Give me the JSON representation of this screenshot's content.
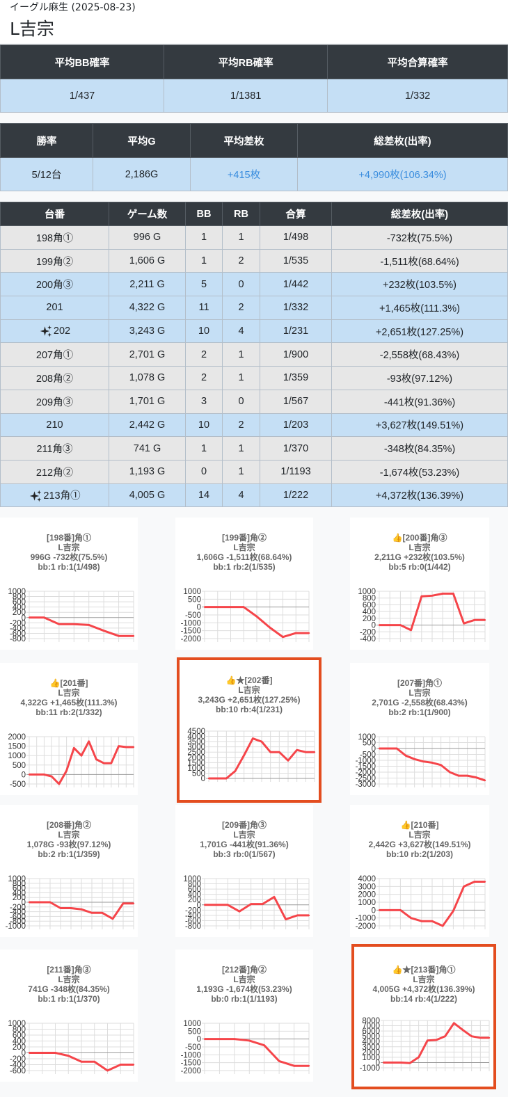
{
  "header": {
    "subtitle": "イーグル麻生 (2025-08-23)",
    "title": "L吉宗"
  },
  "summary1": {
    "headers": [
      "平均BB確率",
      "平均RB確率",
      "平均合算確率"
    ],
    "values": [
      "1/437",
      "1/1381",
      "1/332"
    ]
  },
  "summary2": {
    "headers": [
      "勝率",
      "平均G",
      "平均差枚",
      "総差枚(出率)"
    ],
    "values": [
      "5/12台",
      "2,186G",
      "+415枚",
      "+4,990枚(106.34%)"
    ]
  },
  "machines": {
    "headers": [
      "台番",
      "ゲーム数",
      "BB",
      "RB",
      "合算",
      "総差枚(出率)"
    ],
    "rows": [
      {
        "num": "198角①",
        "games": "996 G",
        "bb": "1",
        "rb": "1",
        "total": "1/498",
        "diff": "-732枚(75.5%)",
        "win": false,
        "star": false
      },
      {
        "num": "199角②",
        "games": "1,606 G",
        "bb": "1",
        "rb": "2",
        "total": "1/535",
        "diff": "-1,511枚(68.64%)",
        "win": false,
        "star": false
      },
      {
        "num": "200角③",
        "games": "2,211 G",
        "bb": "5",
        "rb": "0",
        "total": "1/442",
        "diff": "+232枚(103.5%)",
        "win": true,
        "star": false
      },
      {
        "num": "201",
        "games": "4,322 G",
        "bb": "11",
        "rb": "2",
        "total": "1/332",
        "diff": "+1,465枚(111.3%)",
        "win": true,
        "star": false
      },
      {
        "num": "202",
        "games": "3,243 G",
        "bb": "10",
        "rb": "4",
        "total": "1/231",
        "diff": "+2,651枚(127.25%)",
        "win": true,
        "star": true
      },
      {
        "num": "207角①",
        "games": "2,701 G",
        "bb": "2",
        "rb": "1",
        "total": "1/900",
        "diff": "-2,558枚(68.43%)",
        "win": false,
        "star": false
      },
      {
        "num": "208角②",
        "games": "1,078 G",
        "bb": "2",
        "rb": "1",
        "total": "1/359",
        "diff": "-93枚(97.12%)",
        "win": false,
        "star": false
      },
      {
        "num": "209角③",
        "games": "1,701 G",
        "bb": "3",
        "rb": "0",
        "total": "1/567",
        "diff": "-441枚(91.36%)",
        "win": false,
        "star": false
      },
      {
        "num": "210",
        "games": "2,442 G",
        "bb": "10",
        "rb": "2",
        "total": "1/203",
        "diff": "+3,627枚(149.51%)",
        "win": true,
        "star": false
      },
      {
        "num": "211角③",
        "games": "741 G",
        "bb": "1",
        "rb": "1",
        "total": "1/370",
        "diff": "-348枚(84.35%)",
        "win": false,
        "star": false
      },
      {
        "num": "212角②",
        "games": "1,193 G",
        "bb": "0",
        "rb": "1",
        "total": "1/1193",
        "diff": "-1,674枚(53.23%)",
        "win": false,
        "star": false
      },
      {
        "num": "213角①",
        "games": "4,005 G",
        "bb": "14",
        "rb": "4",
        "total": "1/222",
        "diff": "+4,372枚(136.39%)",
        "win": true,
        "star": true
      }
    ]
  },
  "colors": {
    "line": "#f5454a",
    "grid": "#dddddd",
    "highlight": "#e34d1f",
    "win_row": "#c5dff5",
    "lose_row": "#e7e7e7",
    "dark_header": "#343a40"
  },
  "charts": [
    {
      "lines": [
        "[198番]角①",
        "L吉宗",
        "996G -732枚(75.5%)",
        "bb:1 rb:1(1/498)"
      ],
      "highlight": false,
      "chart_data": {
        "type": "line",
        "yticks": [
          1000,
          800,
          600,
          400,
          200,
          0,
          -200,
          -400,
          -600,
          -800
        ],
        "ylim": [
          -800,
          1000
        ],
        "values": [
          0,
          0,
          -250,
          -250,
          -280,
          -500,
          -700,
          -700
        ]
      }
    },
    {
      "lines": [
        "[199番]角②",
        "L吉宗",
        "1,606G -1,511枚(68.64%)",
        "bb:1 rb:2(1/535)"
      ],
      "highlight": false,
      "chart_data": {
        "type": "line",
        "yticks": [
          1000,
          500,
          0,
          -500,
          -1000,
          -1500,
          -2000
        ],
        "ylim": [
          -2000,
          1000
        ],
        "values": [
          0,
          0,
          0,
          0,
          -600,
          -1300,
          -1900,
          -1650,
          -1650
        ]
      }
    },
    {
      "lines": [
        "👍[200番]角③",
        "L吉宗",
        "2,211G +232枚(103.5%)",
        "bb:5 rb:0(1/442)"
      ],
      "highlight": false,
      "chart_data": {
        "type": "line",
        "yticks": [
          1000,
          800,
          600,
          400,
          200,
          0,
          -200,
          -400
        ],
        "ylim": [
          -400,
          1000
        ],
        "values": [
          0,
          0,
          0,
          -150,
          850,
          870,
          930,
          930,
          50,
          150,
          150
        ]
      }
    },
    {
      "lines": [
        "👍[201番]",
        "L吉宗",
        "4,322G +1,465枚(111.3%)",
        "bb:11 rb:2(1/332)"
      ],
      "highlight": false,
      "chart_data": {
        "type": "line",
        "yticks": [
          2000,
          1500,
          1000,
          500,
          0,
          -500
        ],
        "ylim": [
          -500,
          2000
        ],
        "values": [
          0,
          0,
          0,
          -100,
          -500,
          200,
          1400,
          1000,
          1750,
          800,
          600,
          600,
          1500,
          1450,
          1450
        ]
      }
    },
    {
      "lines": [
        "👍★[202番]",
        "L吉宗",
        "3,243G +2,651枚(127.25%)",
        "bb:10 rb:4(1/231)"
      ],
      "highlight": true,
      "chart_data": {
        "type": "line",
        "yticks": [
          4500,
          4000,
          3500,
          3000,
          2500,
          2000,
          1500,
          1000,
          500,
          0
        ],
        "ylim": [
          0,
          4500
        ],
        "values": [
          0,
          0,
          0,
          700,
          2200,
          3800,
          3500,
          2500,
          2500,
          1700,
          2700,
          2500,
          2500
        ]
      }
    },
    {
      "lines": [
        "[207番]角①",
        "L吉宗",
        "2,701G -2,558枚(68.43%)",
        "bb:2 rb:1(1/900)"
      ],
      "highlight": false,
      "chart_data": {
        "type": "line",
        "yticks": [
          1000,
          500,
          0,
          -500,
          -1000,
          -1500,
          -2000,
          -2500,
          -3000
        ],
        "ylim": [
          -3000,
          1000
        ],
        "values": [
          0,
          0,
          0,
          -600,
          -900,
          -1100,
          -1200,
          -1400,
          -2000,
          -2300,
          -2300,
          -2450,
          -2700
        ]
      }
    },
    {
      "lines": [
        "[208番]角②",
        "L吉宗",
        "1,078G -93枚(97.12%)",
        "bb:2 rb:1(1/359)"
      ],
      "highlight": false,
      "chart_data": {
        "type": "line",
        "yticks": [
          1000,
          800,
          600,
          400,
          200,
          0,
          -200,
          -400,
          -600,
          -800,
          -1000
        ],
        "ylim": [
          -1000,
          1000
        ],
        "values": [
          0,
          0,
          0,
          -250,
          -250,
          -300,
          -450,
          -450,
          -700,
          -50,
          -50
        ]
      }
    },
    {
      "lines": [
        "[209番]角③",
        "L吉宗",
        "1,701G -441枚(91.36%)",
        "bb:3 rb:0(1/567)"
      ],
      "highlight": false,
      "chart_data": {
        "type": "line",
        "yticks": [
          1000,
          800,
          600,
          400,
          200,
          0,
          -200,
          -400,
          -600,
          -800
        ],
        "ylim": [
          -800,
          1000
        ],
        "values": [
          0,
          0,
          0,
          -250,
          30,
          30,
          300,
          -550,
          -400,
          -400
        ]
      }
    },
    {
      "lines": [
        "👍[210番]",
        "L吉宗",
        "2,442G +3,627枚(149.51%)",
        "bb:10 rb:2(1/203)"
      ],
      "highlight": false,
      "chart_data": {
        "type": "line",
        "yticks": [
          4000,
          3000,
          2000,
          1000,
          0,
          -1000,
          -2000
        ],
        "ylim": [
          -2000,
          4000
        ],
        "values": [
          0,
          0,
          0,
          -1000,
          -1400,
          -1400,
          -2000,
          -100,
          3000,
          3600,
          3600
        ]
      }
    },
    {
      "lines": [
        "[211番]角③",
        "L吉宗",
        "741G -348枚(84.35%)",
        "bb:1 rb:1(1/370)"
      ],
      "highlight": false,
      "chart_data": {
        "type": "line",
        "yticks": [
          1000,
          800,
          600,
          400,
          200,
          0,
          -200,
          -400,
          -600
        ],
        "ylim": [
          -600,
          1000
        ],
        "values": [
          0,
          0,
          0,
          -100,
          -300,
          -300,
          -600,
          -400,
          -400
        ]
      }
    },
    {
      "lines": [
        "[212番]角②",
        "L吉宗",
        "1,193G -1,674枚(53.23%)",
        "bb:0 rb:1(1/1193)"
      ],
      "highlight": false,
      "chart_data": {
        "type": "line",
        "yticks": [
          1000,
          500,
          0,
          -500,
          -1000,
          -1500,
          -2000
        ],
        "ylim": [
          -2000,
          1000
        ],
        "values": [
          0,
          0,
          0,
          -100,
          -400,
          -1400,
          -1700,
          -1700
        ]
      }
    },
    {
      "lines": [
        "👍★[213番]角①",
        "L吉宗",
        "4,005G +4,372枚(136.39%)",
        "bb:14 rb:4(1/222)"
      ],
      "highlight": true,
      "chart_data": {
        "type": "line",
        "yticks": [
          8000,
          7000,
          6000,
          5000,
          4000,
          3000,
          2000,
          1000,
          0,
          -1000
        ],
        "ylim": [
          -1000,
          8000
        ],
        "values": [
          0,
          0,
          0,
          -100,
          1000,
          4200,
          4300,
          5000,
          7500,
          6200,
          5000,
          4700,
          4700
        ]
      }
    }
  ]
}
